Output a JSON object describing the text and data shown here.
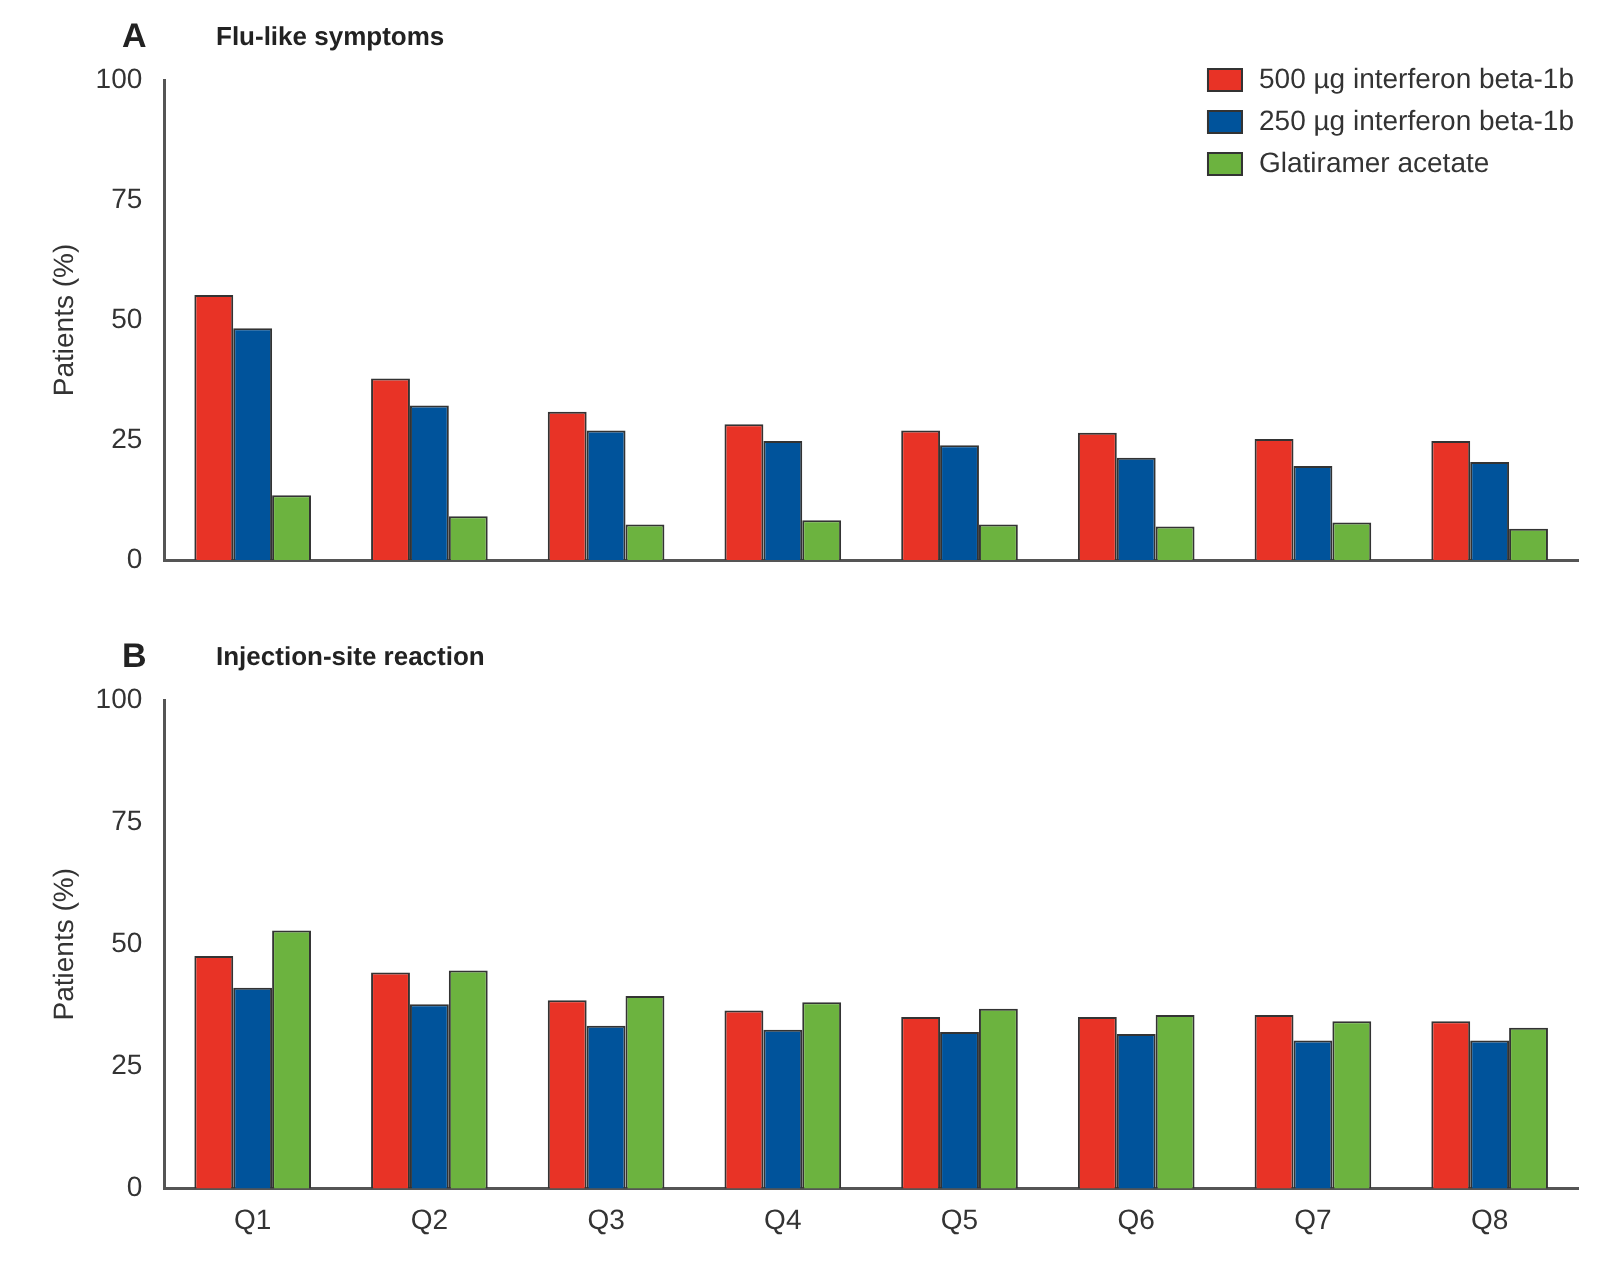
{
  "chart_data": [
    {
      "type": "bar",
      "title": "Flu-like symptoms",
      "annotations": [
        "A"
      ],
      "ylabel": "Patients (%)",
      "categories": [
        null,
        null,
        null,
        null,
        null,
        null,
        null,
        null
      ],
      "tick_labels": "y",
      "legend": "top right",
      "grid": false,
      "ylim": [
        0,
        100
      ],
      "yticks": [
        0,
        25,
        50,
        75,
        100
      ],
      "series": [
        {
          "name": "500 µg interferon beta-1b",
          "color": "#e83326",
          "values": [
            55.2,
            37.8,
            30.9,
            28.3,
            27,
            26.5,
            25.2,
            24.8
          ]
        },
        {
          "name": "250 µg interferon beta-1b",
          "color": "#00539b",
          "values": [
            48.3,
            32.2,
            27,
            24.8,
            23.9,
            21.3,
            19.6,
            20.4
          ]
        },
        {
          "name": "Glatiramer acetate",
          "color": "#6cb33f",
          "values": [
            13.5,
            9.1,
            7.4,
            8.3,
            7.4,
            7,
            7.8,
            6.5
          ]
        }
      ]
    },
    {
      "type": "bar",
      "title": "Injection-site reaction",
      "annotations": [
        "B"
      ],
      "ylabel": "Patients (%)",
      "categories": [
        "Q1",
        "Q2",
        "Q3",
        "Q4",
        "Q5",
        "Q6",
        "Q7",
        "Q8"
      ],
      "grid": false,
      "ylim": [
        0,
        100
      ],
      "yticks": [
        0,
        25,
        50,
        75,
        100
      ],
      "series": [
        {
          "color": "#e83326",
          "values": [
            47.6,
            44.2,
            38.5,
            36.4,
            35.1,
            35.1,
            35.5,
            34.2
          ]
        },
        {
          "color": "#00539b",
          "values": [
            41.1,
            37.7,
            33.3,
            32.5,
            32,
            31.6,
            30.3,
            30.3
          ]
        },
        {
          "color": "#6cb33f",
          "values": [
            52.8,
            44.6,
            39.4,
            38.1,
            36.8,
            35.5,
            34.2,
            32.9
          ]
        }
      ]
    }
  ]
}
